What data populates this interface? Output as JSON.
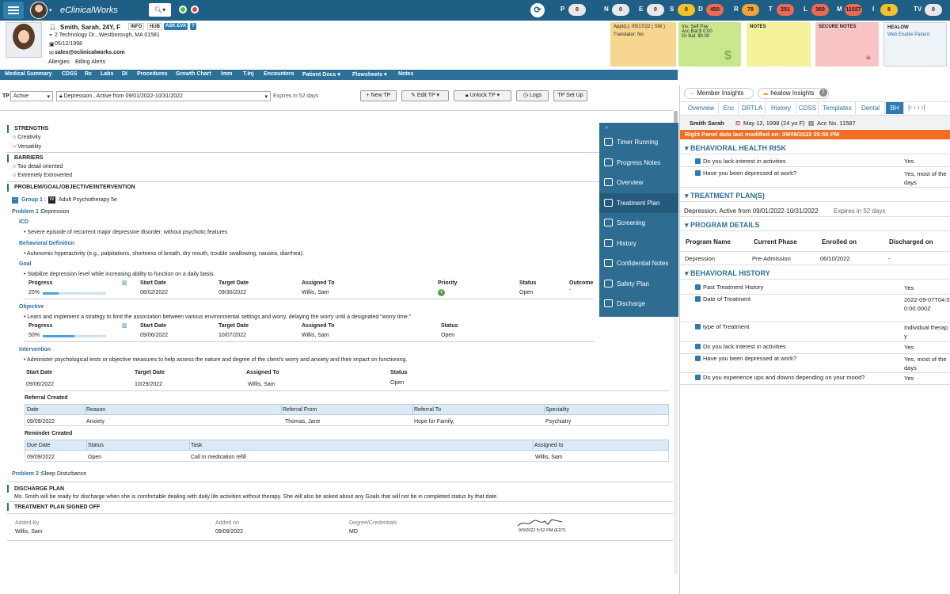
{
  "app": {
    "title": "eClinicalWorks"
  },
  "topbar": {
    "counters": [
      {
        "label": "P",
        "value": "0",
        "color": "#e8e8e8"
      },
      {
        "label": "N",
        "value": "0",
        "color": "#e8e8e8"
      },
      {
        "label": "E",
        "value": "0",
        "color": "#e8e8e8"
      },
      {
        "label": "S",
        "value": "0",
        "color": "#f2c22b"
      },
      {
        "label": "D",
        "value": "450",
        "color": "#ec6a53"
      },
      {
        "label": "R",
        "value": "78",
        "color": "#f2a33a"
      },
      {
        "label": "T",
        "value": "251",
        "color": "#ec6a53"
      },
      {
        "label": "L",
        "value": "369",
        "color": "#ec6a53"
      },
      {
        "label": "M",
        "value": "11027",
        "color": "#ec6a53"
      },
      {
        "label": "I",
        "value": "8",
        "color": "#f2c22b"
      },
      {
        "label": "TV",
        "value": "0",
        "color": "#e8e8e8"
      }
    ]
  },
  "patient": {
    "name": "Smith, Sarah, 24Y, F",
    "address": "2 Technology Dr., Westborough, MA 01581",
    "dob": "05/12/1998",
    "email": "sales@eclinicalworks.com",
    "allergies": "Allergies",
    "billing_alerts": "Billing Alerts",
    "tags": [
      "INFO",
      "HUB",
      "ASK EVA",
      "?"
    ]
  },
  "cards": {
    "appt": {
      "line1": "Appt(L): 05/17/22 ( SW )",
      "line2": "Translator: No"
    },
    "ins": {
      "line1": "Ins: Self Pay",
      "line2": "Acc Bal:$ 0.00",
      "line3": "Gr Bal: $0.00"
    },
    "notes": {
      "title": "NOTES"
    },
    "secure": {
      "title": "SECURE NOTES"
    },
    "healow": {
      "title": "HEALOW",
      "sub": "Web Enable Patient."
    }
  },
  "nav": [
    "Medical Summary",
    "CDSS",
    "Rx",
    "Labs",
    "DI",
    "Procedures",
    "Growth Chart",
    "Imm",
    "T.Inj",
    "Encounters",
    "Patient Docs",
    "Flowsheets",
    "Notes"
  ],
  "tp_bar": {
    "label": "TP",
    "status": "Active",
    "plan": "Depression , Active from 09/01/2022-10/31/2022",
    "expires": "Expires in 52 days",
    "buttons": [
      "New TP",
      "Edit TP",
      "Unlock TP",
      "Logs",
      "TP Set Up"
    ]
  },
  "plan": {
    "strengths_title": "STRENGTHS",
    "strengths": [
      "Creativity",
      "Versatility"
    ],
    "barriers_title": "BARRIERS",
    "barriers": [
      "Too detail oriented",
      "Extremely Extroverted"
    ],
    "ppoi_title": "PROBLEM/GOAL/OBJECTIVE/INTERVENTION",
    "group_label": "Group 1 :",
    "group_value": "Adult Psychotherapy 5e",
    "problem1_label": "Problem 1 :",
    "problem1_value": "Depression",
    "icd_label": "ICD",
    "icd_value": "Severe episode of recurrent major depressive disorder, without psychotic features",
    "behav_label": "Behavioral Definition",
    "behav_value": "Autonomic hyperactivity (e.g., palpitations, shortness of breath, dry mouth, trouble swallowing, nausea, diarrhea).",
    "goal_label": "Goal",
    "goal_value": "Stabilize depression level while increasing ability to function on a daily basis.",
    "goal_headers": [
      "Progress",
      "Start Date",
      "Target Date",
      "Assigned To",
      "Priority",
      "Status",
      "Outcome"
    ],
    "goal_values": {
      "progress": "25%",
      "progress_fraction": 0.25,
      "start": "08/02/2022",
      "target": "09/30/2022",
      "assigned": "Willis, Sam",
      "priority": "1",
      "status": "Open",
      "outcome": "-"
    },
    "objective_label": "Objective",
    "objective_value": "Learn and implement a strategy to limit the association between various environmental settings and worry, delaying the worry until a designated \"worry time.\"",
    "obj_headers": [
      "Progress",
      "Start Date",
      "Target Date",
      "Assigned To",
      "Status"
    ],
    "obj_values": {
      "progress": "50%",
      "progress_fraction": 0.5,
      "start": "09/06/2022",
      "target": "10/07/2022",
      "assigned": "Willis, Sam",
      "status": "Open"
    },
    "intervention_label": "Intervention",
    "intervention_value": "Administer psychological tests or objective measures to help assess the nature and degree of the client's worry and anxiety and their impact on functioning.",
    "int_headers": [
      "Start Date",
      "Target Date",
      "Assigned To",
      "Status"
    ],
    "int_values": {
      "start": "09/06/2022",
      "target": "10/29/2022",
      "assigned": "Willis, Sam",
      "status": "Open"
    },
    "referral_title": "Referral Created",
    "referral_headers": [
      "Date",
      "Reason",
      "Referral From",
      "Referral To",
      "Speciality"
    ],
    "referral_row": [
      "09/09/2022",
      "Anxiety",
      "Thomas, Jane",
      "Hope for Family,",
      "Psychiatry"
    ],
    "reminder_title": "Reminder Created",
    "reminder_headers": [
      "Due Date",
      "Status",
      "Task",
      "Assigned to"
    ],
    "reminder_row": [
      "09/09/2022",
      "Open",
      "Call in medication refill",
      "Willis, Sam"
    ],
    "problem2_label": "Problem 2 :",
    "problem2_value": "Sleep Disturbance",
    "discharge_title": "DISCHARGE PLAN",
    "discharge_text": "Ms. Smith will be ready for discharge when she is comfortable dealing with daily life activities without therapy. She will also be asked about any Goals that will not be in completed status by that date.",
    "signed_title": "TREATMENT PLAN SIGNED OFF",
    "signed_headers": [
      "Added By",
      "Added on",
      "Degree/Credentials"
    ],
    "signed_values": [
      "Willis, Sam",
      "09/09/2022",
      "MD"
    ],
    "signature_stamp": "9/9/2022 5:52 PM (EDT)"
  },
  "side_menu": [
    "Timer Running",
    "Progress Notes",
    "Overview",
    "Treatment Plan",
    "Screening",
    "History",
    "Confidential Notes",
    "Safety Plan",
    "Discharge"
  ],
  "right_panel": {
    "insight_tabs": [
      "Member Insights",
      "healow Insights"
    ],
    "healow_count": "1",
    "tabs": [
      "Overview",
      "Enc",
      "DRTLA",
      "History",
      "CDSS",
      "Templates",
      "Dental",
      "BH"
    ],
    "patient_name": "Smith Sarah",
    "patient_dob": "May 12, 1998 (24 yo F)",
    "patient_acc": "Acc No. 11587",
    "modified": "Right Panel data last modified on: 09/09/2022 05:59 PM",
    "bh_risk_title": "BEHAVIORAL HEALTH RISK",
    "bh_risk": [
      {
        "q": "Do you lack interest in activities",
        "a": "Yes"
      },
      {
        "q": "Have you been depressed at work?",
        "a": "Yes, most of the days"
      }
    ],
    "tp_title": "TREATMENT PLAN(S)",
    "tp_text": "Depression, Active from 09/01/2022-10/31/2022",
    "tp_expires": "Expires in 52 days",
    "program_title": "PROGRAM DETAILS",
    "program_headers": [
      "Program Name",
      "Current Phase",
      "Enrolled on",
      "Discharged on"
    ],
    "program_row": [
      "Depression",
      "Pre-Admission",
      "06/10/2022",
      "-"
    ],
    "bh_history_title": "BEHAVIORAL HISTORY",
    "bh_history": [
      {
        "q": "Past Treatment History",
        "a": "Yes"
      },
      {
        "q": "Date of Treatment",
        "a": "2022-09-07T04:00:00.000Z"
      },
      {
        "q": "type of Treatment",
        "a": "Individual therapy"
      },
      {
        "q": "Do you lack interest in activities",
        "a": "Yes"
      },
      {
        "q": "Have you been depressed at work?",
        "a": "Yes, most of the days"
      },
      {
        "q": "Do you experience ups and downs depending on your mood?",
        "a": "Yes"
      }
    ]
  }
}
